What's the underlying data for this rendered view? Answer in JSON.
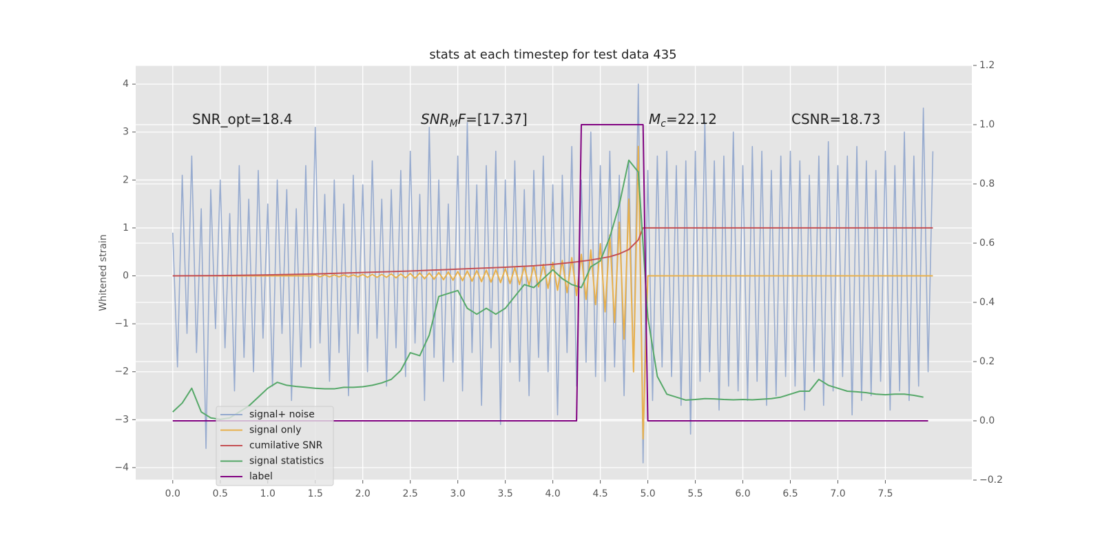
{
  "chart_data": {
    "type": "line",
    "title": "stats at each timestep for test data 435",
    "ylabel": "Whitened strain",
    "grid": true,
    "xlim": [
      -0.39,
      8.41
    ],
    "ylim": [
      -4.26,
      4.39
    ],
    "y2lim": [
      -0.2,
      1.2
    ],
    "xticks": [
      {
        "value": 0,
        "label": "0.0"
      },
      {
        "value": 0.5,
        "label": "0.5"
      },
      {
        "value": 1,
        "label": "1.0"
      },
      {
        "value": 1.5,
        "label": "1.5"
      },
      {
        "value": 2,
        "label": "2.0"
      },
      {
        "value": 2.5,
        "label": "2.5"
      },
      {
        "value": 3,
        "label": "3.0"
      },
      {
        "value": 3.5,
        "label": "3.5"
      },
      {
        "value": 4,
        "label": "4.0"
      },
      {
        "value": 4.5,
        "label": "4.5"
      },
      {
        "value": 5,
        "label": "5.0"
      },
      {
        "value": 5.5,
        "label": "5.5"
      },
      {
        "value": 6,
        "label": "6.0"
      },
      {
        "value": 6.5,
        "label": "6.5"
      },
      {
        "value": 7,
        "label": "7.0"
      },
      {
        "value": 7.5,
        "label": "7.5"
      }
    ],
    "yticks": [
      {
        "value": -4,
        "label": "−4"
      },
      {
        "value": -3,
        "label": "−3"
      },
      {
        "value": -2,
        "label": "−2"
      },
      {
        "value": -1,
        "label": "−1"
      },
      0,
      1,
      2,
      3,
      4
    ],
    "y2ticks": [
      {
        "value": -0.2,
        "label": "−0.2"
      },
      {
        "value": 0,
        "label": "0.0"
      },
      {
        "value": 0.2,
        "label": "0.2"
      },
      {
        "value": 0.4,
        "label": "0.4"
      },
      {
        "value": 0.6,
        "label": "0.6"
      },
      {
        "value": 0.8,
        "label": "0.8"
      },
      {
        "value": 1,
        "label": "1.0"
      },
      {
        "value": 1.2,
        "label": "1.2"
      }
    ],
    "annotations": [
      {
        "parts": [
          {
            "text": "SNR_opt=18.4"
          }
        ]
      },
      {
        "parts": [
          {
            "text": "SNR",
            "italic": true
          },
          {
            "text": "M",
            "italic": true,
            "sub": true
          },
          {
            "text": "F",
            "italic": true
          },
          {
            "text": "=[17.37]"
          }
        ]
      },
      {
        "parts": [
          {
            "text": "M",
            "italic": true
          },
          {
            "text": "c",
            "italic": true,
            "sub": true
          },
          {
            "text": "=22.12"
          }
        ]
      },
      {
        "parts": [
          {
            "text": "CSNR=18.73"
          }
        ]
      }
    ],
    "x": [
      0,
      0.05,
      0.1,
      0.15,
      0.2,
      0.25,
      0.3,
      0.35,
      0.4,
      0.45,
      0.5,
      0.55,
      0.6,
      0.65,
      0.7,
      0.75,
      0.8,
      0.85,
      0.9,
      0.95,
      1,
      1.05,
      1.1,
      1.15,
      1.2,
      1.25,
      1.3,
      1.35,
      1.4,
      1.45,
      1.5,
      1.55,
      1.6,
      1.65,
      1.7,
      1.75,
      1.8,
      1.85,
      1.9,
      1.95,
      2,
      2.05,
      2.1,
      2.15,
      2.2,
      2.25,
      2.3,
      2.35,
      2.4,
      2.45,
      2.5,
      2.55,
      2.6,
      2.65,
      2.7,
      2.75,
      2.8,
      2.85,
      2.9,
      2.95,
      3,
      3.05,
      3.1,
      3.15,
      3.2,
      3.25,
      3.3,
      3.35,
      3.4,
      3.45,
      3.5,
      3.55,
      3.6,
      3.65,
      3.7,
      3.75,
      3.8,
      3.85,
      3.9,
      3.95,
      4,
      4.05,
      4.1,
      4.15,
      4.2,
      4.25,
      4.3,
      4.35,
      4.4,
      4.45,
      4.5,
      4.55,
      4.6,
      4.65,
      4.7,
      4.75,
      4.8,
      4.85,
      4.9,
      4.95,
      5,
      5.05,
      5.1,
      5.15,
      5.2,
      5.25,
      5.3,
      5.35,
      5.4,
      5.45,
      5.5,
      5.55,
      5.6,
      5.65,
      5.7,
      5.75,
      5.8,
      5.85,
      5.9,
      5.95,
      6,
      6.05,
      6.1,
      6.15,
      6.2,
      6.25,
      6.3,
      6.35,
      6.4,
      6.45,
      6.5,
      6.55,
      6.6,
      6.65,
      6.7,
      6.75,
      6.8,
      6.85,
      6.9,
      6.95,
      7,
      7.05,
      7.1,
      7.15,
      7.2,
      7.25,
      7.3,
      7.35,
      7.4,
      7.45,
      7.5,
      7.55,
      7.6,
      7.65,
      7.7,
      7.75,
      7.8,
      7.85,
      7.9,
      7.95,
      8
    ],
    "series": [
      {
        "name": "signal+ noise",
        "color": "#92a8cd",
        "axis": "y",
        "values": [
          0.9,
          -1.9,
          2.1,
          -1.2,
          2.5,
          -1.6,
          1.4,
          -3.6,
          1.8,
          -1.1,
          2.0,
          -1.5,
          1.3,
          -2.4,
          2.3,
          -1.7,
          1.6,
          -2.0,
          2.2,
          -1.3,
          1.5,
          -2.3,
          2.0,
          -1.2,
          1.8,
          -2.6,
          1.4,
          -1.9,
          2.3,
          -1.5,
          3.1,
          -1.4,
          1.7,
          -2.2,
          2.0,
          -1.6,
          1.5,
          -2.5,
          2.1,
          -1.2,
          1.9,
          -2.0,
          2.4,
          -1.3,
          1.6,
          -2.3,
          1.8,
          -1.5,
          2.2,
          -2.1,
          2.6,
          -1.4,
          1.7,
          -2.6,
          3.1,
          -1.7,
          2.0,
          -2.2,
          1.5,
          -1.8,
          2.5,
          -2.4,
          3.2,
          -1.6,
          1.9,
          -2.7,
          2.3,
          -1.5,
          2.6,
          -3.1,
          2.0,
          -1.8,
          2.4,
          -2.2,
          1.8,
          -2.5,
          2.2,
          -1.7,
          2.5,
          -2.0,
          1.9,
          -2.9,
          2.1,
          -1.6,
          2.7,
          -2.3,
          2.0,
          -1.8,
          3.0,
          -2.1,
          2.3,
          -2.2,
          2.6,
          -1.9,
          2.1,
          -2.5,
          2.4,
          -2.0,
          4.0,
          -3.9,
          2.2,
          -2.6,
          2.5,
          -1.9,
          2.6,
          -2.1,
          2.3,
          -2.7,
          2.4,
          -3.3,
          2.6,
          -2.2,
          3.2,
          -2.0,
          2.4,
          -2.8,
          2.5,
          -2.3,
          3.0,
          -2.4,
          2.3,
          -2.6,
          2.7,
          -2.2,
          2.6,
          -2.7,
          2.2,
          -2.5,
          2.5,
          -2.1,
          2.6,
          -2.3,
          2.4,
          -2.8,
          2.1,
          -2.0,
          2.5,
          -2.7,
          2.8,
          -2.4,
          2.3,
          -2.1,
          2.5,
          -2.9,
          2.7,
          -2.6,
          2.4,
          -2.5,
          2.2,
          -2.2,
          2.6,
          -2.8,
          2.3,
          -2.4,
          3.0,
          -2.6,
          2.5,
          -2.3,
          3.5,
          -2.0,
          2.6
        ]
      },
      {
        "name": "signal only",
        "color": "#e8b04c",
        "axis": "y",
        "values": [
          0,
          0,
          0,
          0,
          0,
          0,
          0,
          0,
          0,
          0,
          0,
          0,
          0,
          0,
          0,
          0,
          0,
          0,
          0,
          0,
          0,
          0,
          0,
          0,
          0,
          0,
          0,
          0,
          0,
          0,
          0.02,
          -0.02,
          0.02,
          -0.02,
          0.02,
          -0.02,
          0.02,
          -0.02,
          0.02,
          -0.02,
          0.03,
          -0.03,
          0.03,
          -0.03,
          0.03,
          -0.03,
          0.04,
          -0.04,
          0.04,
          -0.04,
          0.05,
          -0.05,
          0.06,
          -0.06,
          0.06,
          -0.07,
          0.07,
          -0.08,
          0.08,
          -0.09,
          0.09,
          -0.1,
          0.1,
          -0.11,
          0.11,
          -0.12,
          0.12,
          -0.13,
          0.13,
          -0.14,
          0.15,
          -0.16,
          0.17,
          -0.18,
          0.19,
          -0.2,
          0.21,
          -0.23,
          0.24,
          -0.26,
          0.28,
          -0.3,
          0.32,
          -0.35,
          0.38,
          -0.41,
          0.45,
          -0.49,
          0.54,
          -0.6,
          0.67,
          -0.75,
          0.85,
          -0.97,
          1.12,
          -1.32,
          1.6,
          -2.0,
          2.7,
          -3.4,
          0,
          0,
          0,
          0,
          0,
          0,
          0,
          0,
          0,
          0,
          0,
          0,
          0,
          0,
          0,
          0,
          0,
          0,
          0,
          0,
          0,
          0,
          0,
          0,
          0,
          0,
          0,
          0,
          0,
          0,
          0,
          0,
          0,
          0,
          0,
          0,
          0,
          0,
          0,
          0,
          0,
          0,
          0,
          0,
          0,
          0,
          0,
          0,
          0,
          0,
          0,
          0,
          0,
          0,
          0,
          0,
          0,
          0,
          0,
          0,
          0
        ]
      },
      {
        "name": "cumilative SNR",
        "color": "#c44e52",
        "axis": "y",
        "x": [
          0,
          0.5,
          1,
          1.5,
          2,
          2.5,
          3,
          3.5,
          3.8,
          4,
          4.2,
          4.4,
          4.6,
          4.7,
          4.8,
          4.9,
          4.95,
          5,
          8
        ],
        "values": [
          0,
          0.005,
          0.02,
          0.04,
          0.07,
          0.1,
          0.14,
          0.18,
          0.21,
          0.24,
          0.28,
          0.33,
          0.4,
          0.46,
          0.55,
          0.75,
          1,
          1,
          1
        ]
      },
      {
        "name": "signal statistics",
        "color": "#55a868",
        "axis": "y2",
        "x": [
          0,
          0.1,
          0.2,
          0.3,
          0.4,
          0.5,
          0.6,
          0.7,
          0.8,
          0.9,
          1,
          1.1,
          1.2,
          1.3,
          1.4,
          1.5,
          1.6,
          1.7,
          1.8,
          1.9,
          2,
          2.1,
          2.2,
          2.3,
          2.4,
          2.5,
          2.6,
          2.7,
          2.8,
          2.9,
          3,
          3.1,
          3.2,
          3.3,
          3.4,
          3.5,
          3.6,
          3.7,
          3.8,
          3.9,
          4,
          4.1,
          4.2,
          4.3,
          4.4,
          4.5,
          4.6,
          4.7,
          4.8,
          4.9,
          5,
          5.1,
          5.2,
          5.3,
          5.4,
          5.5,
          5.6,
          5.7,
          5.8,
          5.9,
          6,
          6.1,
          6.2,
          6.3,
          6.4,
          6.5,
          6.6,
          6.7,
          6.8,
          6.9,
          7,
          7.1,
          7.2,
          7.3,
          7.4,
          7.5,
          7.6,
          7.7,
          7.8,
          7.9
        ],
        "values": [
          0.03,
          0.06,
          0.11,
          0.03,
          0.01,
          0.005,
          0.01,
          0.03,
          0.05,
          0.08,
          0.11,
          0.13,
          0.12,
          0.116,
          0.113,
          0.11,
          0.108,
          0.108,
          0.113,
          0.113,
          0.115,
          0.12,
          0.128,
          0.14,
          0.17,
          0.23,
          0.22,
          0.29,
          0.42,
          0.43,
          0.44,
          0.38,
          0.36,
          0.38,
          0.36,
          0.38,
          0.42,
          0.46,
          0.45,
          0.48,
          0.51,
          0.48,
          0.46,
          0.45,
          0.52,
          0.54,
          0.62,
          0.73,
          0.88,
          0.84,
          0.35,
          0.15,
          0.09,
          0.08,
          0.07,
          0.072,
          0.075,
          0.074,
          0.072,
          0.071,
          0.072,
          0.071,
          0.073,
          0.075,
          0.08,
          0.09,
          0.1,
          0.1,
          0.14,
          0.12,
          0.11,
          0.1,
          0.098,
          0.095,
          0.09,
          0.088,
          0.09,
          0.09,
          0.086,
          0.08
        ]
      },
      {
        "name": "label",
        "color": "#800080",
        "axis": "y2",
        "x": [
          0,
          4.25,
          4.3,
          4.95,
          5,
          7.95
        ],
        "values": [
          0,
          0,
          1,
          1,
          0,
          0
        ]
      }
    ]
  }
}
